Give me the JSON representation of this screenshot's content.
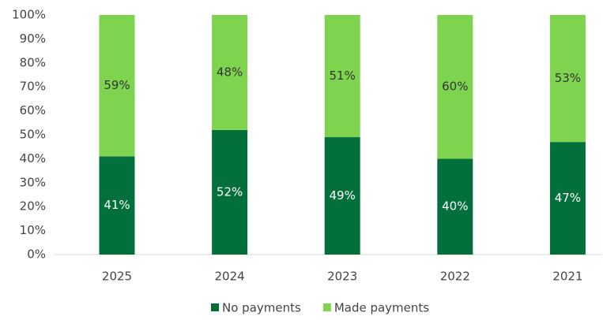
{
  "chart_data": {
    "type": "stacked_bar",
    "categories": [
      "2025",
      "2024",
      "2023",
      "2022",
      "2021"
    ],
    "series": [
      {
        "name": "No payments",
        "color": "#03703c",
        "values": [
          41,
          52,
          49,
          40,
          47
        ],
        "value_labels": [
          "41%",
          "52%",
          "49%",
          "40%",
          "47%"
        ]
      },
      {
        "name": "Made payments",
        "color": "#7ed44f",
        "values": [
          59,
          48,
          51,
          60,
          53
        ],
        "value_labels": [
          "59%",
          "48%",
          "51%",
          "60%",
          "53%"
        ]
      }
    ],
    "ylim": [
      0,
      100
    ],
    "yticks": [
      {
        "value": 0,
        "label": "0%"
      },
      {
        "value": 10,
        "label": "10%"
      },
      {
        "value": 20,
        "label": "20%"
      },
      {
        "value": 30,
        "label": "30%"
      },
      {
        "value": 40,
        "label": "40%"
      },
      {
        "value": 50,
        "label": "50%"
      },
      {
        "value": 60,
        "label": "60%"
      },
      {
        "value": 70,
        "label": "70%"
      },
      {
        "value": 80,
        "label": "80%"
      },
      {
        "value": 90,
        "label": "90%"
      },
      {
        "value": 100,
        "label": "100%"
      }
    ],
    "legend": "bottom"
  }
}
